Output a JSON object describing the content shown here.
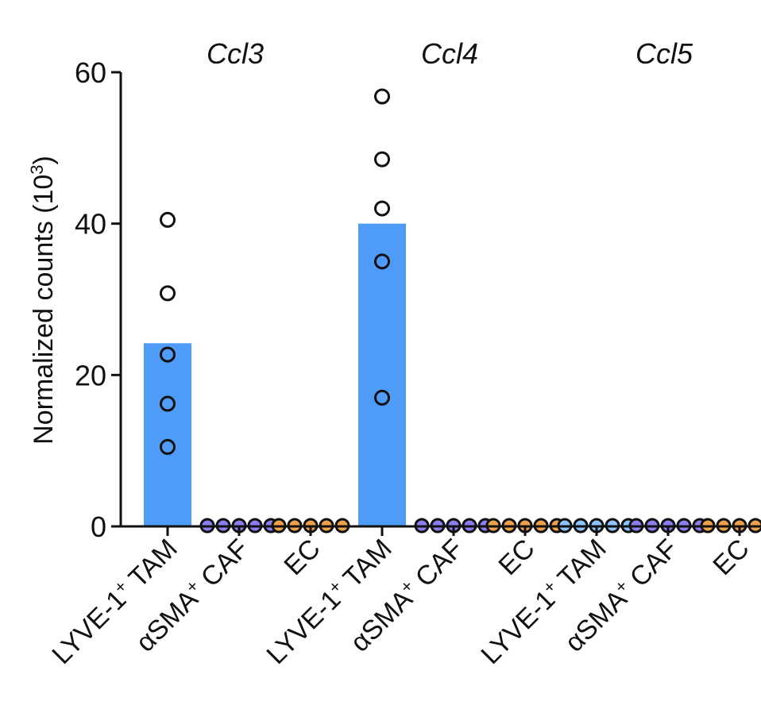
{
  "chart_data": {
    "type": "bar",
    "ylabel": "Normalized counts (10",
    "ylabel_sup": "3",
    "ylabel_close": ")",
    "ylim": [
      0,
      60
    ],
    "yticks": [
      "0",
      "20",
      "40",
      "60"
    ],
    "grid": false,
    "groups": [
      {
        "gene": "Ccl3",
        "bars": [
          {
            "category": "LYVE-1",
            "sup": "+",
            "suffix": " TAM",
            "value": 24.2,
            "points": [
              40.5,
              30.8,
              22.7,
              16.2,
              10.5
            ],
            "color": "#4f9cf8",
            "point_fill": "#4f9cf8"
          },
          {
            "category": "αSMA",
            "sup": "+",
            "suffix": " CAF",
            "value": 0.2,
            "points": [
              0.2,
              0.2,
              0.2,
              0.2,
              0.2
            ],
            "color": "#7a6fe0",
            "point_fill": "#8a7ef0"
          },
          {
            "category": "EC",
            "sup": "",
            "suffix": "",
            "value": 0.1,
            "points": [
              0.1,
              0.1,
              0.1,
              0.1,
              0.1
            ],
            "color": "#e8953a",
            "point_fill": "#f0a24a"
          }
        ]
      },
      {
        "gene": "Ccl4",
        "bars": [
          {
            "category": "LYVE-1",
            "sup": "+",
            "suffix": " TAM",
            "value": 40.0,
            "points": [
              56.8,
              48.5,
              42.0,
              35.0,
              17.0
            ],
            "color": "#4f9cf8",
            "point_fill": "#4f9cf8"
          },
          {
            "category": "αSMA",
            "sup": "+",
            "suffix": " CAF",
            "value": 0.3,
            "points": [
              0.3,
              0.3,
              0.3,
              0.3,
              0.3
            ],
            "color": "#7a6fe0",
            "point_fill": "#8a7ef0"
          },
          {
            "category": "EC",
            "sup": "",
            "suffix": "",
            "value": 0.1,
            "points": [
              0.1,
              0.1,
              0.1,
              0.1,
              0.1
            ],
            "color": "#e8953a",
            "point_fill": "#f0a24a"
          }
        ]
      },
      {
        "gene": "Ccl5",
        "bars": [
          {
            "category": "LYVE-1",
            "sup": "+",
            "suffix": " TAM",
            "value": 0.2,
            "points": [
              0.2,
              0.2,
              0.2,
              0.2,
              0.2
            ],
            "color": "#4f9cf8",
            "point_fill": "#8cc4ff"
          },
          {
            "category": "αSMA",
            "sup": "+",
            "suffix": " CAF",
            "value": 0.2,
            "points": [
              0.2,
              0.2,
              0.2,
              0.2,
              0.2
            ],
            "color": "#7a6fe0",
            "point_fill": "#8a7ef0"
          },
          {
            "category": "EC",
            "sup": "",
            "suffix": "",
            "value": 0.1,
            "points": [
              0.1,
              0.1,
              0.1,
              0.1,
              0.1
            ],
            "color": "#e8953a",
            "point_fill": "#f0a24a"
          }
        ]
      }
    ]
  }
}
